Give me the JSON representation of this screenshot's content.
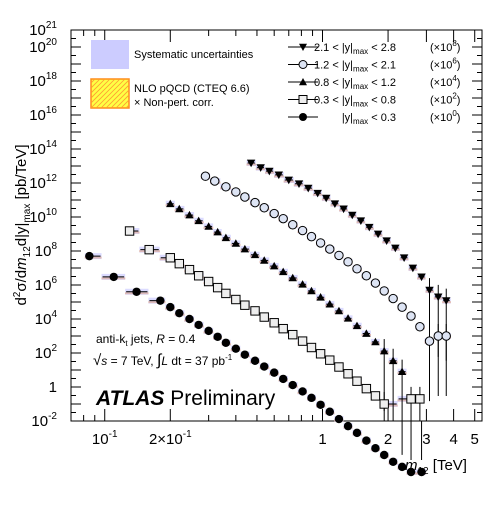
{
  "chart_data": {
    "type": "scatter",
    "xlabel": "m12 [TeV]",
    "xlabel_main": "m",
    "xlabel_sub": "12",
    "xlabel_unit": " [TeV]",
    "ylabel": "d²σ/dm12d|y|max [pb/TeV]",
    "ylabel_parts": {
      "pre": "d",
      "sup2": "2",
      "sigma": "σ/d",
      "m": "m",
      "sub12": "12",
      "mid": "d|y|",
      "submax": "max",
      "unit": " [pb/TeV]"
    },
    "x_scale": "log",
    "y_scale": "log",
    "xlim": [
      0.07,
      5.4
    ],
    "ylim_exp": [
      -2,
      21
    ],
    "x_ticks": [
      {
        "v": 0.1,
        "b": "10",
        "e": "-1"
      },
      {
        "v": 0.2,
        "b": "2×10",
        "e": "-1"
      },
      {
        "v": 1,
        "b": "1",
        "e": ""
      },
      {
        "v": 2,
        "b": "2",
        "e": ""
      },
      {
        "v": 3,
        "b": "3",
        "e": ""
      },
      {
        "v": 4,
        "b": "4",
        "e": ""
      },
      {
        "v": 5,
        "b": "5",
        "e": ""
      }
    ],
    "y_ticks": [
      {
        "e": -2,
        "b": "10",
        "s": "-2"
      },
      {
        "e": 0,
        "b": "1",
        "s": ""
      },
      {
        "e": 2,
        "b": "10",
        "s": "2"
      },
      {
        "e": 4,
        "b": "10",
        "s": "4"
      },
      {
        "e": 6,
        "b": "10",
        "s": "6"
      },
      {
        "e": 8,
        "b": "10",
        "s": "8"
      },
      {
        "e": 10,
        "b": "10",
        "s": "10"
      },
      {
        "e": 12,
        "b": "10",
        "s": "12"
      },
      {
        "e": 14,
        "b": "10",
        "s": "14"
      },
      {
        "e": 16,
        "b": "10",
        "s": "16"
      },
      {
        "e": 18,
        "b": "10",
        "s": "18"
      },
      {
        "e": 20,
        "b": "10",
        "s": "20"
      },
      {
        "e": 21,
        "b": "10",
        "s": "21"
      }
    ],
    "legend_left": [
      {
        "kind": "syst",
        "lines": [
          "Systematic uncertainties"
        ]
      },
      {
        "kind": "nlo",
        "lines": [
          "NLO pQCD (CTEQ 6.6)",
          "× Non-pert. corr."
        ]
      }
    ],
    "colors": {
      "syst": "#ccccff",
      "nlo_fill": "#ffff44",
      "nlo_line": "#ff8c1a",
      "nlo_hatch": "#ff9a33"
    },
    "series": [
      {
        "marker": "triangle-down",
        "range": "2.1 < |y|max < 2.8",
        "scale": "(× 10^8)",
        "legend": {
          "lo": "2.1 < |y|",
          "sub": "max",
          "hi": " < 2.8",
          "scale_b": "(×10",
          "scale_e": "8",
          "scale_end": ")"
        },
        "points": [
          [
            0.47,
            15000000000000.0
          ],
          [
            0.52,
            8000000000000.0
          ],
          [
            0.57,
            5000000000000.0
          ],
          [
            0.63,
            3000000000000.0
          ],
          [
            0.7,
            1500000000000.0
          ],
          [
            0.78,
            900000000000.0
          ],
          [
            0.86,
            500000000000.0
          ],
          [
            0.95,
            250000000000.0
          ],
          [
            1.04,
            130000000000.0
          ],
          [
            1.14,
            60000000000.0
          ],
          [
            1.25,
            30000000000.0
          ],
          [
            1.37,
            13000000000.0
          ],
          [
            1.5,
            6000000000.0
          ],
          [
            1.64,
            2500000000.0
          ],
          [
            1.8,
            1000000000.0
          ],
          [
            1.97,
            400000000.0
          ],
          [
            2.16,
            150000000.0
          ],
          [
            2.37,
            40000000.0
          ],
          [
            2.6,
            10000000.0
          ],
          [
            2.85,
            3000000.0
          ],
          [
            3.1,
            500000.0
          ],
          [
            3.4,
            200000.0
          ],
          [
            3.7,
            120000.0
          ]
        ]
      },
      {
        "marker": "circle-open",
        "range": "1.2 < |y|max < 2.1",
        "scale": "(× 10^6)",
        "legend": {
          "lo": "1.2 < |y|",
          "sub": "max",
          "hi": " < 2.1",
          "scale_b": "(×10",
          "scale_e": "6",
          "scale_end": ")"
        },
        "points": [
          [
            0.29,
            2500000000000.0
          ],
          [
            0.32,
            1300000000000.0
          ],
          [
            0.36,
            600000000000.0
          ],
          [
            0.4,
            300000000000.0
          ],
          [
            0.44,
            150000000000.0
          ],
          [
            0.49,
            70000000000.0
          ],
          [
            0.54,
            35000000000.0
          ],
          [
            0.6,
            16000000000.0
          ],
          [
            0.66,
            8000000000.0
          ],
          [
            0.73,
            3500000000.0
          ],
          [
            0.81,
            1600000000.0
          ],
          [
            0.89,
            700000000.0
          ],
          [
            0.98,
            300000000.0
          ],
          [
            1.08,
            130000000.0
          ],
          [
            1.19,
            55000000.0
          ],
          [
            1.31,
            23000000.0
          ],
          [
            1.44,
            9000000.0
          ],
          [
            1.59,
            3500000.0
          ],
          [
            1.75,
            1300000.0
          ],
          [
            1.92,
            450000.0
          ],
          [
            2.11,
            160000.0
          ],
          [
            2.32,
            50000.0
          ],
          [
            2.55,
            15000.0
          ],
          [
            2.8,
            3500.0
          ],
          [
            3.1,
            500.0
          ],
          [
            3.4,
            1000.0
          ],
          [
            3.7,
            1000.0
          ]
        ]
      },
      {
        "marker": "triangle-up",
        "range": "0.8 < |y|max < 1.2",
        "scale": "(× 10^4)",
        "legend": {
          "lo": "0.8 < |y|",
          "sub": "max",
          "hi": " < 1.2",
          "scale_b": "(×10",
          "scale_e": "4",
          "scale_end": ")"
        },
        "points": [
          [
            0.2,
            60000000000.0
          ],
          [
            0.22,
            30000000000.0
          ],
          [
            0.245,
            13000000000.0
          ],
          [
            0.27,
            6000000000.0
          ],
          [
            0.3,
            2800000000.0
          ],
          [
            0.33,
            1300000000.0
          ],
          [
            0.36,
            600000000.0
          ],
          [
            0.4,
            280000000.0
          ],
          [
            0.44,
            130000000.0
          ],
          [
            0.49,
            60000000.0
          ],
          [
            0.54,
            28000000.0
          ],
          [
            0.6,
            13000000.0
          ],
          [
            0.66,
            6000000.0
          ],
          [
            0.73,
            2600000.0
          ],
          [
            0.81,
            1100000.0
          ],
          [
            0.89,
            450000.0
          ],
          [
            0.98,
            190000.0
          ],
          [
            1.08,
            75000.0
          ],
          [
            1.19,
            30000.0
          ],
          [
            1.31,
            11000.0
          ],
          [
            1.44,
            4000.0
          ],
          [
            1.59,
            1400.0
          ],
          [
            1.75,
            450.0
          ],
          [
            1.92,
            130.0
          ],
          [
            2.11,
            35
          ],
          [
            2.32,
            8
          ]
        ]
      },
      {
        "marker": "square-open",
        "range": "0.3 < |y|max < 0.8",
        "scale": "(× 10^2)",
        "legend": {
          "lo": "0.3 < |y|",
          "sub": "max",
          "hi": " < 0.8",
          "scale_b": "(×10",
          "scale_e": "2",
          "scale_end": ")"
        },
        "points": [
          [
            0.13,
            1500000000.0
          ],
          [
            0.16,
            120000000.0
          ],
          [
            0.2,
            40000000.0
          ],
          [
            0.22,
            18000000.0
          ],
          [
            0.245,
            8000000.0
          ],
          [
            0.27,
            3500000.0
          ],
          [
            0.3,
            1600000.0
          ],
          [
            0.33,
            700000.0
          ],
          [
            0.36,
            320000.0
          ],
          [
            0.4,
            140000.0
          ],
          [
            0.44,
            65000.0
          ],
          [
            0.49,
            30000.0
          ],
          [
            0.54,
            13000.0
          ],
          [
            0.6,
            6000.0
          ],
          [
            0.66,
            2700.0
          ],
          [
            0.73,
            1200.0
          ],
          [
            0.81,
            500.0
          ],
          [
            0.89,
            210.0
          ],
          [
            0.98,
            90
          ],
          [
            1.08,
            38
          ],
          [
            1.19,
            15
          ],
          [
            1.31,
            6
          ],
          [
            1.44,
            2.2
          ],
          [
            1.59,
            0.8
          ],
          [
            1.75,
            0.3
          ],
          [
            1.92,
            0.1
          ],
          [
            2.55,
            0.2
          ],
          [
            2.8,
            0.2
          ]
        ]
      },
      {
        "marker": "circle-filled",
        "range": "|y|max < 0.3",
        "scale": "(× 10^0)",
        "legend": {
          "lo": "|y|",
          "sub": "max",
          "hi": " < 0.3",
          "scale_b": "(×10",
          "scale_e": "0",
          "scale_end": ")"
        },
        "points": [
          [
            0.085,
            50000000.0
          ],
          [
            0.11,
            3000000.0
          ],
          [
            0.14,
            400000.0
          ],
          [
            0.18,
            120000.0
          ],
          [
            0.2,
            50000.0
          ],
          [
            0.22,
            22000.0
          ],
          [
            0.245,
            10000.0
          ],
          [
            0.27,
            4500.0
          ],
          [
            0.3,
            2000.0
          ],
          [
            0.33,
            900.0
          ],
          [
            0.36,
            400.0
          ],
          [
            0.4,
            180.0
          ],
          [
            0.44,
            80
          ],
          [
            0.49,
            35
          ],
          [
            0.54,
            16
          ],
          [
            0.6,
            7
          ],
          [
            0.66,
            3
          ],
          [
            0.73,
            1.3
          ],
          [
            0.81,
            0.55
          ],
          [
            0.89,
            0.23
          ],
          [
            0.98,
            0.09
          ],
          [
            1.08,
            0.035
          ],
          [
            1.19,
            0.013
          ],
          [
            1.31,
            0.005
          ],
          [
            1.44,
            0.002
          ],
          [
            1.59,
            0.0007
          ],
          [
            1.75,
            0.00025
          ],
          [
            1.92,
            0.0001
          ],
          [
            2.11,
            4e-05
          ],
          [
            2.32,
            2e-05
          ],
          [
            2.55,
            1e-05
          ],
          [
            2.85,
            1e-05
          ]
        ]
      }
    ],
    "annotations": {
      "line1_a": "anti-k",
      "line1_sub": "t",
      "line1_b": " jets,  ",
      "line1_R": "R",
      "line1_c": " = 0.4",
      "line2_sqrt": "√",
      "line2_s": "s",
      "line2_a": " = 7 TeV, ",
      "line2_int": "∫",
      "line2_L": "L",
      "line2_b": " dt = 37 pb",
      "line2_sup": "-1",
      "atlas": "ATLAS",
      "preliminary": " Preliminary"
    }
  }
}
